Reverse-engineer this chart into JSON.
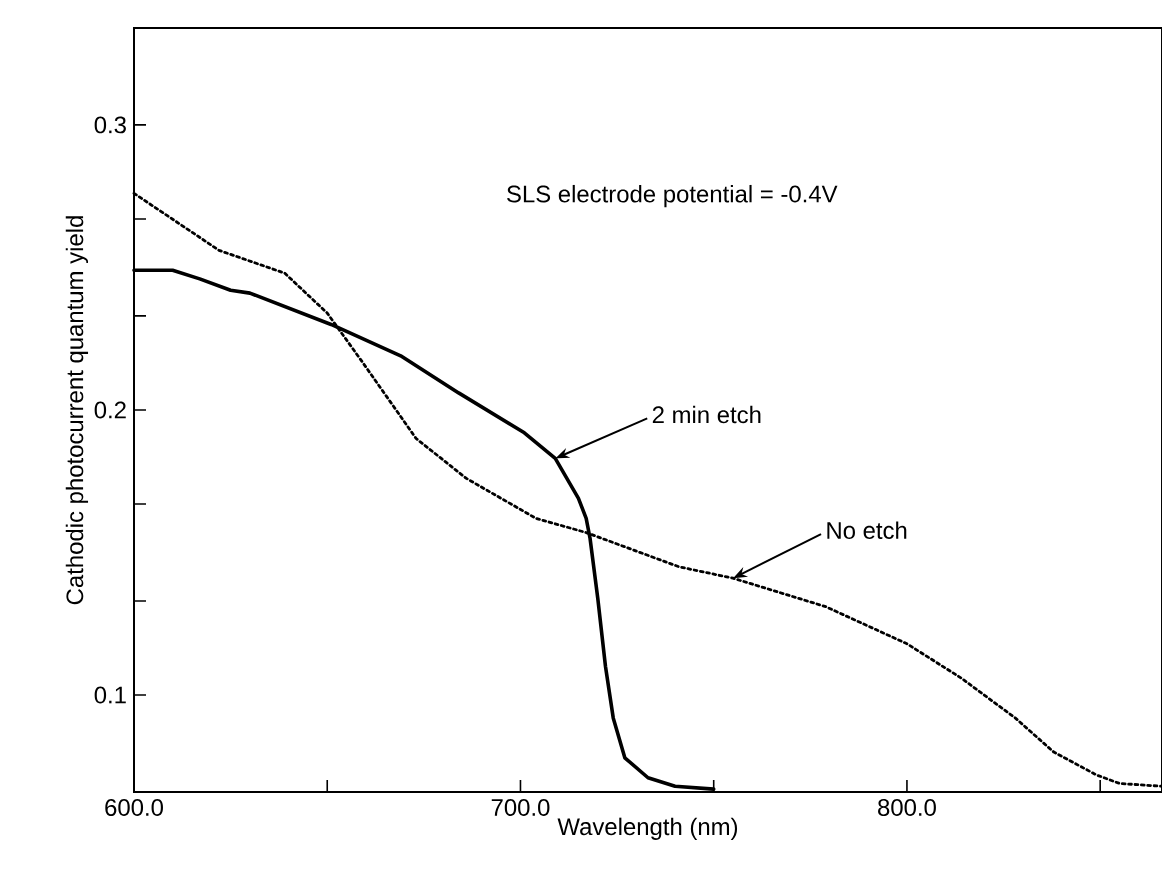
{
  "chart_data": {
    "type": "line",
    "xlabel": "Wavelength (nm)",
    "ylabel": "Cathodic photocurrent quantum yield",
    "xlim": [
      600,
      866
    ],
    "ylim": [
      0.066,
      0.334
    ],
    "xticks": [
      {
        "value": 600,
        "label": "600.0"
      },
      {
        "value": 650,
        "label": null
      },
      {
        "value": 700,
        "label": "700.0"
      },
      {
        "value": 750,
        "label": null
      },
      {
        "value": 800,
        "label": "800.0"
      },
      {
        "value": 850,
        "label": null
      }
    ],
    "yticks": [
      {
        "value": 0.1,
        "label": "0.1"
      },
      {
        "value": 0.133,
        "label": null
      },
      {
        "value": 0.167,
        "label": null
      },
      {
        "value": 0.2,
        "label": "0.2"
      },
      {
        "value": 0.233,
        "label": null
      },
      {
        "value": 0.267,
        "label": null
      },
      {
        "value": 0.3,
        "label": "0.3"
      }
    ],
    "grid": false,
    "marker": "none",
    "series": [
      {
        "color": "#000000",
        "line_style": "solid",
        "x": [
          600,
          610,
          617,
          625,
          630,
          651,
          669,
          684,
          701,
          709,
          712,
          715,
          717,
          718,
          720,
          722,
          724,
          727,
          733,
          740,
          750
        ],
        "values": [
          0.249,
          0.249,
          0.246,
          0.242,
          0.241,
          0.23,
          0.219,
          0.206,
          0.192,
          0.183,
          0.176,
          0.169,
          0.162,
          0.155,
          0.134,
          0.11,
          0.092,
          0.078,
          0.071,
          0.068,
          0.067
        ]
      },
      {
        "color": "#000000",
        "line_style": "dotted",
        "x": [
          600,
          622,
          639,
          650,
          659,
          673,
          686,
          704,
          717,
          727,
          741,
          755,
          779,
          800,
          814,
          828,
          838,
          849,
          855,
          866
        ],
        "values": [
          0.276,
          0.256,
          0.248,
          0.234,
          0.217,
          0.19,
          0.176,
          0.162,
          0.157,
          0.152,
          0.145,
          0.141,
          0.131,
          0.118,
          0.106,
          0.092,
          0.08,
          0.072,
          0.069,
          0.068
        ]
      }
    ],
    "annotations": [
      "SLS electrode potential = -0.4V",
      {
        "text": "2 min etch",
        "x": 709,
        "y": 0.183
      },
      {
        "text": "No etch",
        "x": 755,
        "y": 0.141
      }
    ]
  }
}
